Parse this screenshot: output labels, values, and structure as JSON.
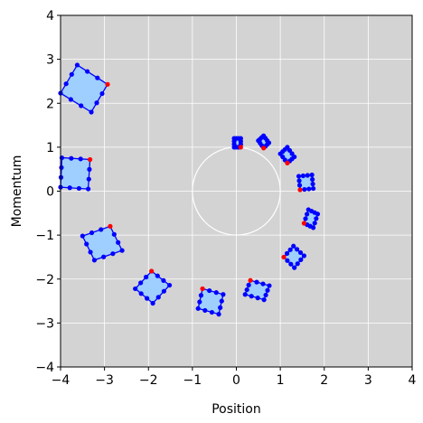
{
  "chart_data": {
    "type": "scatter",
    "title": "",
    "xlabel": "Position",
    "ylabel": "Momentum",
    "xlim": [
      -4,
      4
    ],
    "ylim": [
      -4,
      4
    ],
    "xticks": [
      -4,
      -3,
      -2,
      -1,
      0,
      1,
      2,
      3,
      4
    ],
    "yticks": [
      -4,
      -3,
      -2,
      -1,
      0,
      1,
      2,
      3,
      4
    ],
    "xtick_labels": [
      "−4",
      "−3",
      "−2",
      "−1",
      "0",
      "1",
      "2",
      "3",
      "4"
    ],
    "ytick_labels": [
      "−4",
      "−3",
      "−2",
      "−1",
      "0",
      "1",
      "2",
      "3",
      "4"
    ],
    "grid": true,
    "reference_circle": {
      "cx": 0,
      "cy": 0,
      "r": 1,
      "color": "#ffffff"
    },
    "colors": {
      "background": "#d3d3d3",
      "grid": "#ffffff",
      "fill": "#9fcfff",
      "edge": "#0000ff",
      "point": "#0000ff",
      "marked_point": "#ff0000"
    },
    "squares": [
      {
        "corners": [
          [
            -0.05,
            1.2
          ],
          [
            0.1,
            1.2
          ],
          [
            0.1,
            1.0
          ],
          [
            -0.05,
            1.0
          ]
        ],
        "marked": [
          0.1,
          1.0
        ]
      },
      {
        "corners": [
          [
            0.5,
            1.15
          ],
          [
            0.62,
            1.26
          ],
          [
            0.74,
            1.1
          ],
          [
            0.62,
            0.98
          ]
        ],
        "marked": [
          0.62,
          0.98
        ]
      },
      {
        "corners": [
          [
            1.0,
            0.85
          ],
          [
            1.16,
            1.0
          ],
          [
            1.32,
            0.78
          ],
          [
            1.16,
            0.64
          ]
        ],
        "marked": [
          1.16,
          0.64
        ]
      },
      {
        "corners": [
          [
            1.42,
            0.34
          ],
          [
            1.72,
            0.37
          ],
          [
            1.75,
            0.06
          ],
          [
            1.45,
            0.03
          ]
        ],
        "marked": [
          1.45,
          0.03
        ]
      },
      {
        "corners": [
          [
            1.64,
            -0.42
          ],
          [
            1.85,
            -0.52
          ],
          [
            1.75,
            -0.83
          ],
          [
            1.54,
            -0.73
          ]
        ],
        "marked": [
          1.54,
          -0.73
        ]
      },
      {
        "corners": [
          [
            1.3,
            -1.25
          ],
          [
            1.54,
            -1.47
          ],
          [
            1.32,
            -1.74
          ],
          [
            1.08,
            -1.5
          ]
        ],
        "marked": [
          1.08,
          -1.5
        ]
      },
      {
        "corners": [
          [
            0.32,
            -2.03
          ],
          [
            0.75,
            -2.15
          ],
          [
            0.63,
            -2.47
          ],
          [
            0.2,
            -2.35
          ]
        ],
        "marked": [
          0.32,
          -2.03
        ]
      },
      {
        "corners": [
          [
            -0.77,
            -2.22
          ],
          [
            -0.3,
            -2.35
          ],
          [
            -0.4,
            -2.8
          ],
          [
            -0.87,
            -2.67
          ]
        ],
        "marked": [
          -0.77,
          -2.22
        ]
      },
      {
        "corners": [
          [
            -1.93,
            -1.82
          ],
          [
            -1.52,
            -2.14
          ],
          [
            -1.9,
            -2.55
          ],
          [
            -2.3,
            -2.22
          ]
        ],
        "marked": [
          -1.93,
          -1.82
        ]
      },
      {
        "corners": [
          [
            -2.87,
            -0.8
          ],
          [
            -2.6,
            -1.35
          ],
          [
            -3.23,
            -1.57
          ],
          [
            -3.5,
            -1.02
          ]
        ],
        "marked": [
          -2.87,
          -0.8
        ]
      },
      {
        "corners": [
          [
            -3.33,
            0.72
          ],
          [
            -3.37,
            0.05
          ],
          [
            -4.0,
            0.09
          ],
          [
            -3.97,
            0.76
          ]
        ],
        "marked": [
          -3.33,
          0.72
        ]
      },
      {
        "corners": [
          [
            -2.93,
            2.43
          ],
          [
            -3.62,
            2.87
          ],
          [
            -4.0,
            2.23
          ],
          [
            -3.3,
            1.8
          ]
        ],
        "marked": [
          -2.93,
          2.43
        ]
      }
    ]
  }
}
